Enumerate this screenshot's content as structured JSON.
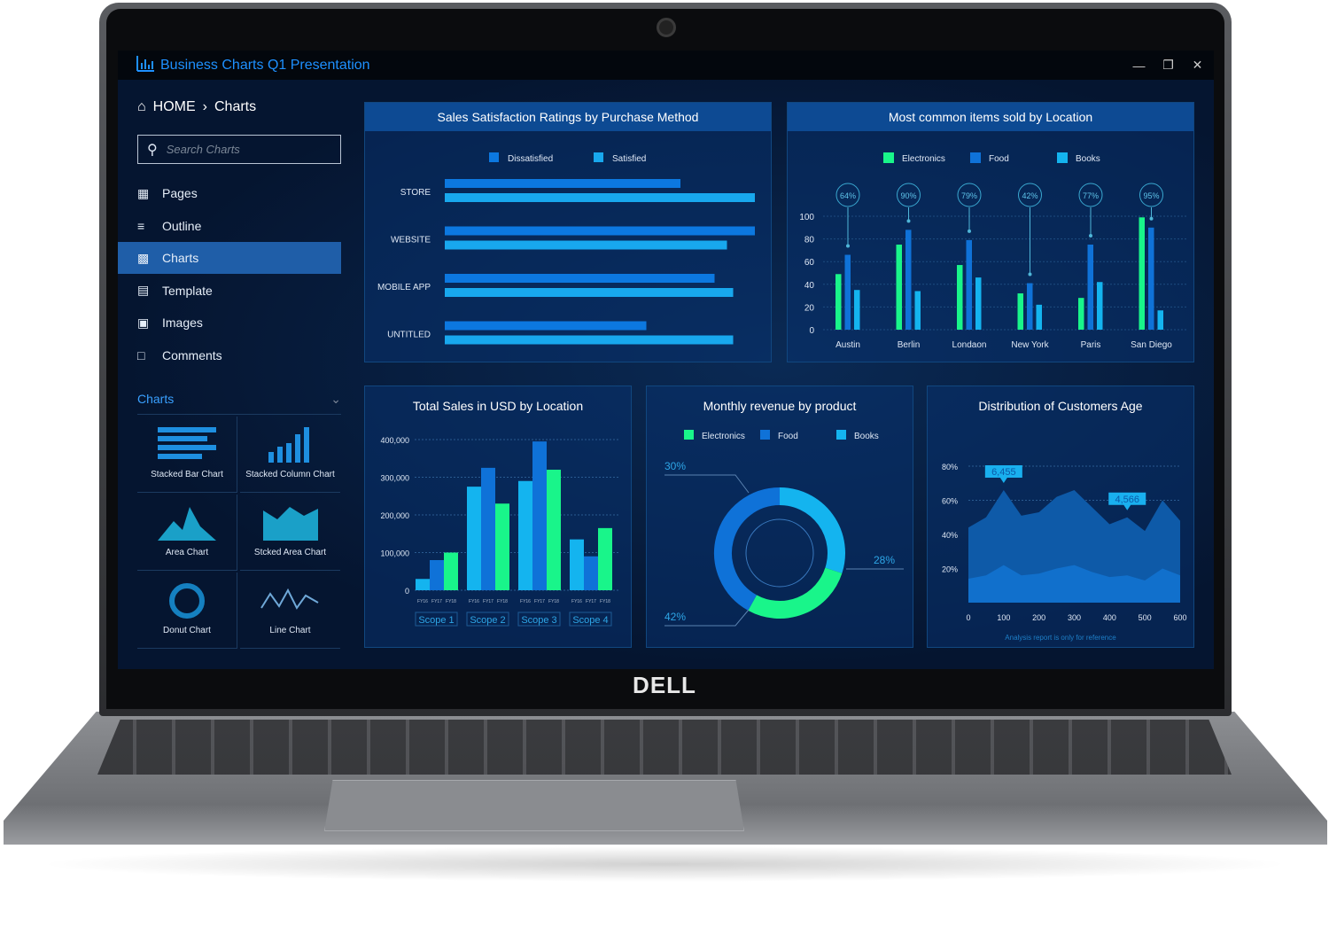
{
  "device": {
    "logo": "DELL"
  },
  "window": {
    "title": "Business Charts Q1 Presentation",
    "controls": [
      "minimize",
      "restore",
      "close"
    ]
  },
  "sidebar": {
    "breadcrumb": {
      "home": "HOME",
      "current": "Charts"
    },
    "search": {
      "placeholder": "Search Charts",
      "value": ""
    },
    "items": [
      {
        "label": "Pages",
        "icon": "grid-icon"
      },
      {
        "label": "Outline",
        "icon": "list-icon"
      },
      {
        "label": "Charts",
        "icon": "bar-chart-icon",
        "active": true
      },
      {
        "label": "Template",
        "icon": "template-icon"
      },
      {
        "label": "Images",
        "icon": "image-icon"
      },
      {
        "label": "Comments",
        "icon": "comment-icon"
      }
    ],
    "group": {
      "label": "Charts",
      "thumbnails": [
        "Stacked Bar Chart",
        "Stacked Column Chart",
        "Area Chart",
        "Stcked Area Chart",
        "Donut Chart",
        "Line Chart"
      ]
    }
  },
  "colors": {
    "electronics": "#19f58a",
    "food": "#0f72d8",
    "books": "#14b4ef",
    "accent": "#1e90ff"
  },
  "chart_data": [
    {
      "type": "bar",
      "orientation": "horizontal",
      "title": "Sales Satisfaction Ratings by Purchase Method",
      "categories": [
        "STORE",
        "WEBSITE",
        "MOBILE APP",
        "UNTITLED"
      ],
      "series": [
        {
          "name": "Dissatisfied",
          "values": [
            76,
            100,
            87,
            65
          ]
        },
        {
          "name": "Satisfied",
          "values": [
            100,
            91,
            93,
            93
          ]
        }
      ],
      "legend": "top"
    },
    {
      "type": "bar",
      "title": "Most common items sold by Location",
      "categories": [
        "Austin",
        "Berlin",
        "Londaon",
        "New York",
        "Paris",
        "San Diego"
      ],
      "series": [
        {
          "name": "Electronics",
          "values": [
            49,
            75,
            57,
            32,
            28,
            99
          ]
        },
        {
          "name": "Food",
          "values": [
            66,
            88,
            79,
            41,
            75,
            90
          ]
        },
        {
          "name": "Books",
          "values": [
            35,
            34,
            46,
            22,
            42,
            17
          ]
        }
      ],
      "annotations": [
        "64%",
        "90%",
        "79%",
        "42%",
        "77%",
        "95%"
      ],
      "yticks": [
        0,
        20,
        40,
        60,
        80,
        100
      ],
      "ylim": [
        0,
        100
      ],
      "legend": "top"
    },
    {
      "type": "bar",
      "title": "Total Sales in USD by Location",
      "groups": [
        "Scope 1",
        "Scope 2",
        "Scope 3",
        "Scope 4"
      ],
      "subcategories": [
        "FY16",
        "FY17",
        "FY18"
      ],
      "values": [
        [
          30000,
          80000,
          100000
        ],
        [
          275000,
          325000,
          230000
        ],
        [
          290000,
          395000,
          320000
        ],
        [
          135000,
          90000,
          165000
        ]
      ],
      "yticks": [
        "0",
        "100,000",
        "200,000",
        "300,000",
        "400,000"
      ],
      "ylim": [
        0,
        400000
      ],
      "grid": true
    },
    {
      "type": "pie",
      "title": "Monthly revenue by product",
      "donut": true,
      "series": [
        {
          "name": "Electronics",
          "value": 28
        },
        {
          "name": "Food",
          "value": 42
        },
        {
          "name": "Books",
          "value": 30
        }
      ],
      "labels": [
        "30%",
        "28%",
        "42%"
      ],
      "legend": "top"
    },
    {
      "type": "area",
      "title": "Distribution of Customers Age",
      "x": [
        0,
        50,
        100,
        150,
        200,
        250,
        300,
        350,
        400,
        450,
        500,
        550,
        600
      ],
      "series": [
        {
          "values": [
            44,
            50,
            66,
            51,
            53,
            62,
            66,
            56,
            46,
            50,
            42,
            60,
            48
          ]
        },
        {
          "values": [
            14,
            16,
            22,
            16,
            17,
            20,
            22,
            18,
            15,
            16,
            13,
            20,
            16
          ]
        }
      ],
      "xticks": [
        "0",
        "100",
        "200",
        "300",
        "400",
        "500",
        "600"
      ],
      "yticks": [
        "20%",
        "40%",
        "60%",
        "80%"
      ],
      "ylim": [
        0,
        80
      ],
      "callouts": [
        "6,455",
        "4,566"
      ],
      "footnote": "Analysis report is only for reference",
      "grid": true
    }
  ]
}
